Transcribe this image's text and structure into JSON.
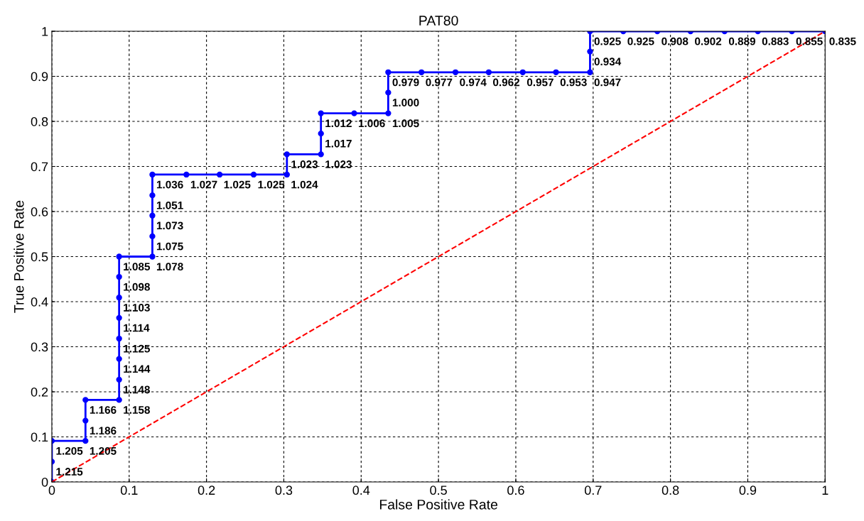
{
  "chart_data": {
    "type": "line",
    "title": "PAT80",
    "xlabel": "False Positive Rate",
    "ylabel": "True Positive Rate",
    "xlim": [
      0,
      1
    ],
    "ylim": [
      0,
      1
    ],
    "xticks": [
      0,
      0.1,
      0.2,
      0.3,
      0.4,
      0.5,
      0.6,
      0.7,
      0.8,
      0.9,
      1
    ],
    "yticks": [
      0,
      0.1,
      0.2,
      0.3,
      0.4,
      0.5,
      0.6,
      0.7,
      0.8,
      0.9,
      1
    ],
    "grid": true,
    "legend": false,
    "series": [
      {
        "color": "#0000ff",
        "marker": "circle",
        "line_style": "solid",
        "x": [
          0,
          0,
          0,
          0.0435,
          0.0435,
          0.0435,
          0.087,
          0.087,
          0.087,
          0.087,
          0.087,
          0.087,
          0.087,
          0.087,
          0.13,
          0.13,
          0.13,
          0.13,
          0.13,
          0.174,
          0.217,
          0.261,
          0.304,
          0.304,
          0.348,
          0.348,
          0.348,
          0.391,
          0.435,
          0.435,
          0.435,
          0.478,
          0.522,
          0.565,
          0.609,
          0.652,
          0.696,
          0.696,
          0.696,
          0.739,
          0.783,
          0.826,
          0.87,
          0.913,
          0.957,
          1
        ],
        "values": [
          0,
          0.045,
          0.091,
          0.091,
          0.136,
          0.182,
          0.182,
          0.227,
          0.273,
          0.318,
          0.364,
          0.409,
          0.455,
          0.5,
          0.5,
          0.545,
          0.591,
          0.636,
          0.682,
          0.682,
          0.682,
          0.682,
          0.682,
          0.727,
          0.727,
          0.773,
          0.818,
          0.818,
          0.818,
          0.864,
          0.909,
          0.909,
          0.909,
          0.909,
          0.909,
          0.909,
          0.909,
          0.955,
          1,
          1,
          1,
          1,
          1,
          1,
          1,
          1
        ]
      },
      {
        "color": "#ff0000",
        "marker": "none",
        "line_style": "dashed",
        "x": [
          0,
          1
        ],
        "values": [
          0,
          1
        ]
      }
    ],
    "annotations": [
      {
        "text": "1.215",
        "x": 0,
        "y": 0.045
      },
      {
        "text": "1.205",
        "x": 0,
        "y": 0.091
      },
      {
        "text": "1.205",
        "x": 0.0435,
        "y": 0.091
      },
      {
        "text": "1.186",
        "x": 0.0435,
        "y": 0.136
      },
      {
        "text": "1.166",
        "x": 0.0435,
        "y": 0.182
      },
      {
        "text": "1.158",
        "x": 0.087,
        "y": 0.182
      },
      {
        "text": "1.148",
        "x": 0.087,
        "y": 0.227
      },
      {
        "text": "1.144",
        "x": 0.087,
        "y": 0.273
      },
      {
        "text": "1.125",
        "x": 0.087,
        "y": 0.318
      },
      {
        "text": "1.114",
        "x": 0.087,
        "y": 0.364
      },
      {
        "text": "1.103",
        "x": 0.087,
        "y": 0.409
      },
      {
        "text": "1.098",
        "x": 0.087,
        "y": 0.455
      },
      {
        "text": "1.085",
        "x": 0.087,
        "y": 0.5
      },
      {
        "text": "1.078",
        "x": 0.13,
        "y": 0.5
      },
      {
        "text": "1.075",
        "x": 0.13,
        "y": 0.545
      },
      {
        "text": "1.073",
        "x": 0.13,
        "y": 0.591
      },
      {
        "text": "1.051",
        "x": 0.13,
        "y": 0.636
      },
      {
        "text": "1.036",
        "x": 0.13,
        "y": 0.682
      },
      {
        "text": "1.027",
        "x": 0.174,
        "y": 0.682
      },
      {
        "text": "1.025",
        "x": 0.217,
        "y": 0.682
      },
      {
        "text": "1.025",
        "x": 0.261,
        "y": 0.682
      },
      {
        "text": "1.024",
        "x": 0.304,
        "y": 0.682
      },
      {
        "text": "1.023",
        "x": 0.304,
        "y": 0.727
      },
      {
        "text": "1.023",
        "x": 0.348,
        "y": 0.727
      },
      {
        "text": "1.017",
        "x": 0.348,
        "y": 0.773
      },
      {
        "text": "1.012",
        "x": 0.348,
        "y": 0.818
      },
      {
        "text": "1.006",
        "x": 0.391,
        "y": 0.818
      },
      {
        "text": "1.005",
        "x": 0.435,
        "y": 0.818
      },
      {
        "text": "1.000",
        "x": 0.435,
        "y": 0.864
      },
      {
        "text": "0.979",
        "x": 0.435,
        "y": 0.909
      },
      {
        "text": "0.977",
        "x": 0.478,
        "y": 0.909
      },
      {
        "text": "0.974",
        "x": 0.522,
        "y": 0.909
      },
      {
        "text": "0.962",
        "x": 0.565,
        "y": 0.909
      },
      {
        "text": "0.957",
        "x": 0.609,
        "y": 0.909
      },
      {
        "text": "0.953",
        "x": 0.652,
        "y": 0.909
      },
      {
        "text": "0.947",
        "x": 0.696,
        "y": 0.909
      },
      {
        "text": "0.934",
        "x": 0.696,
        "y": 0.955
      },
      {
        "text": "0.925",
        "x": 0.696,
        "y": 1
      },
      {
        "text": "0.925",
        "x": 0.739,
        "y": 1
      },
      {
        "text": "0.908",
        "x": 0.783,
        "y": 1
      },
      {
        "text": "0.902",
        "x": 0.826,
        "y": 1
      },
      {
        "text": "0.889",
        "x": 0.87,
        "y": 1
      },
      {
        "text": "0.883",
        "x": 0.913,
        "y": 1
      },
      {
        "text": "0.855",
        "x": 0.957,
        "y": 1
      },
      {
        "text": "0.835",
        "x": 1,
        "y": 1
      }
    ]
  }
}
